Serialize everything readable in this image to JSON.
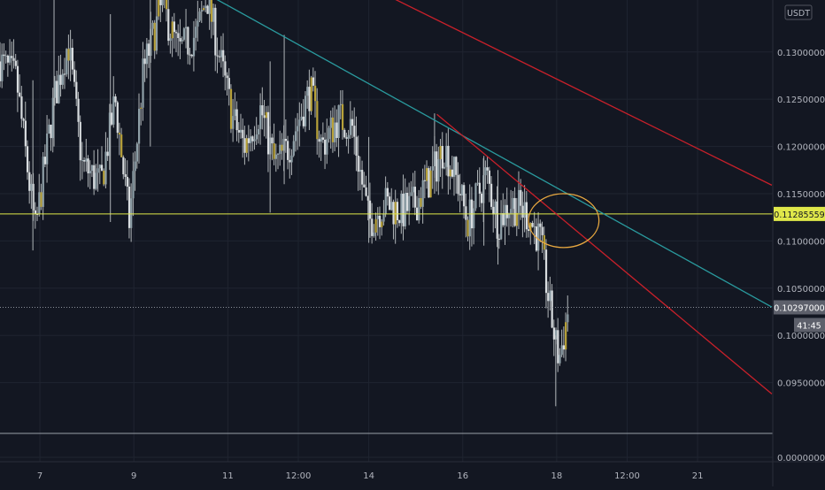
{
  "chart_data": {
    "type": "candlestick",
    "quote_currency": "USDT",
    "y_ticks": [
      "0.13000000",
      "0.12500000",
      "0.12000000",
      "0.11500000",
      "0.11000000",
      "0.10500000",
      "0.10000000",
      "0.09500000",
      "0.00000000"
    ],
    "y_tick_values": [
      0.13,
      0.125,
      0.12,
      0.115,
      0.11,
      0.105,
      0.1,
      0.095,
      0.0
    ],
    "ylim_main": [
      0.0915,
      0.1355
    ],
    "x_ticks": [
      "7",
      "9",
      "11",
      "12:00",
      "14",
      "16",
      "18",
      "12:00",
      "21"
    ],
    "x_tick_day_values": [
      7,
      9,
      11,
      12.5,
      14,
      16,
      18,
      19.5,
      21
    ],
    "xlim_days": [
      6.15,
      22.6
    ],
    "horizontal_line": {
      "value": 0.11285559,
      "label": "0.11285559",
      "color": "#e0e84a"
    },
    "current_price": {
      "value": 0.10297,
      "label": "0.10297000",
      "countdown": "41:45"
    },
    "trend_lines": [
      {
        "name": "",
        "color": "#2a9a9e",
        "points": [
          [
            10.75,
            0.1356
          ],
          [
            22.58,
            0.103
          ]
        ]
      },
      {
        "name": "",
        "color": "#c8202a",
        "points": [
          [
            14.55,
            0.1356
          ],
          [
            22.58,
            0.1159
          ]
        ]
      },
      {
        "name": "",
        "color": "#c8202a",
        "points": [
          [
            15.45,
            0.1234
          ],
          [
            22.58,
            0.0938
          ]
        ]
      }
    ],
    "ellipse_annotation": {
      "x_days": [
        17.4,
        18.9
      ],
      "y": [
        0.1093,
        0.115
      ],
      "color": "#e8a840"
    },
    "close_anchors": [
      [
        6.15,
        0.129
      ],
      [
        6.5,
        0.127
      ],
      [
        6.9,
        0.111
      ],
      [
        7.3,
        0.125
      ],
      [
        7.6,
        0.131
      ],
      [
        7.9,
        0.118
      ],
      [
        8.3,
        0.116
      ],
      [
        8.6,
        0.125
      ],
      [
        8.9,
        0.112
      ],
      [
        9.2,
        0.128
      ],
      [
        9.6,
        0.135
      ],
      [
        9.95,
        0.13
      ],
      [
        10.35,
        0.132
      ],
      [
        10.55,
        0.136
      ],
      [
        10.8,
        0.13
      ],
      [
        11.1,
        0.123
      ],
      [
        11.35,
        0.12
      ],
      [
        11.7,
        0.124
      ],
      [
        12.0,
        0.118
      ],
      [
        12.3,
        0.12
      ],
      [
        12.75,
        0.126
      ],
      [
        13.0,
        0.12
      ],
      [
        13.35,
        0.123
      ],
      [
        13.65,
        0.122
      ],
      [
        14.0,
        0.112
      ],
      [
        14.35,
        0.114
      ],
      [
        14.7,
        0.113
      ],
      [
        15.0,
        0.114
      ],
      [
        15.35,
        0.117
      ],
      [
        15.6,
        0.12
      ],
      [
        15.9,
        0.116
      ],
      [
        16.1,
        0.112
      ],
      [
        16.5,
        0.117
      ],
      [
        16.75,
        0.112
      ],
      [
        17.0,
        0.114
      ],
      [
        17.35,
        0.113
      ],
      [
        17.65,
        0.11
      ],
      [
        17.85,
        0.103
      ],
      [
        17.98,
        0.099
      ],
      [
        18.05,
        0.0975
      ],
      [
        18.15,
        0.1
      ],
      [
        18.25,
        0.103
      ]
    ],
    "spikes": [
      {
        "x": 6.85,
        "low": 0.109,
        "high": 0.127
      },
      {
        "x": 7.3,
        "low": 0.12,
        "high": 0.1355
      },
      {
        "x": 8.5,
        "low": 0.112,
        "high": 0.134
      },
      {
        "x": 9.35,
        "low": 0.12,
        "high": 0.1355
      },
      {
        "x": 11.9,
        "low": 0.113,
        "high": 0.129
      },
      {
        "x": 12.2,
        "low": 0.116,
        "high": 0.1318
      },
      {
        "x": 14.0,
        "low": 0.1098,
        "high": 0.121
      },
      {
        "x": 15.4,
        "low": 0.115,
        "high": 0.1235
      },
      {
        "x": 16.45,
        "low": 0.1095,
        "high": 0.119
      },
      {
        "x": 16.75,
        "low": 0.1075,
        "high": 0.1175
      },
      {
        "x": 17.98,
        "low": 0.0925,
        "high": 0.1
      }
    ],
    "colors": {
      "background": "#131722",
      "up": "#8fa0a8",
      "down": "#d9dde0",
      "wick": "#b0b5b8",
      "accent_up": "#b8a23a",
      "grid": "#1f2430",
      "axis_text": "#b2b5be"
    }
  }
}
